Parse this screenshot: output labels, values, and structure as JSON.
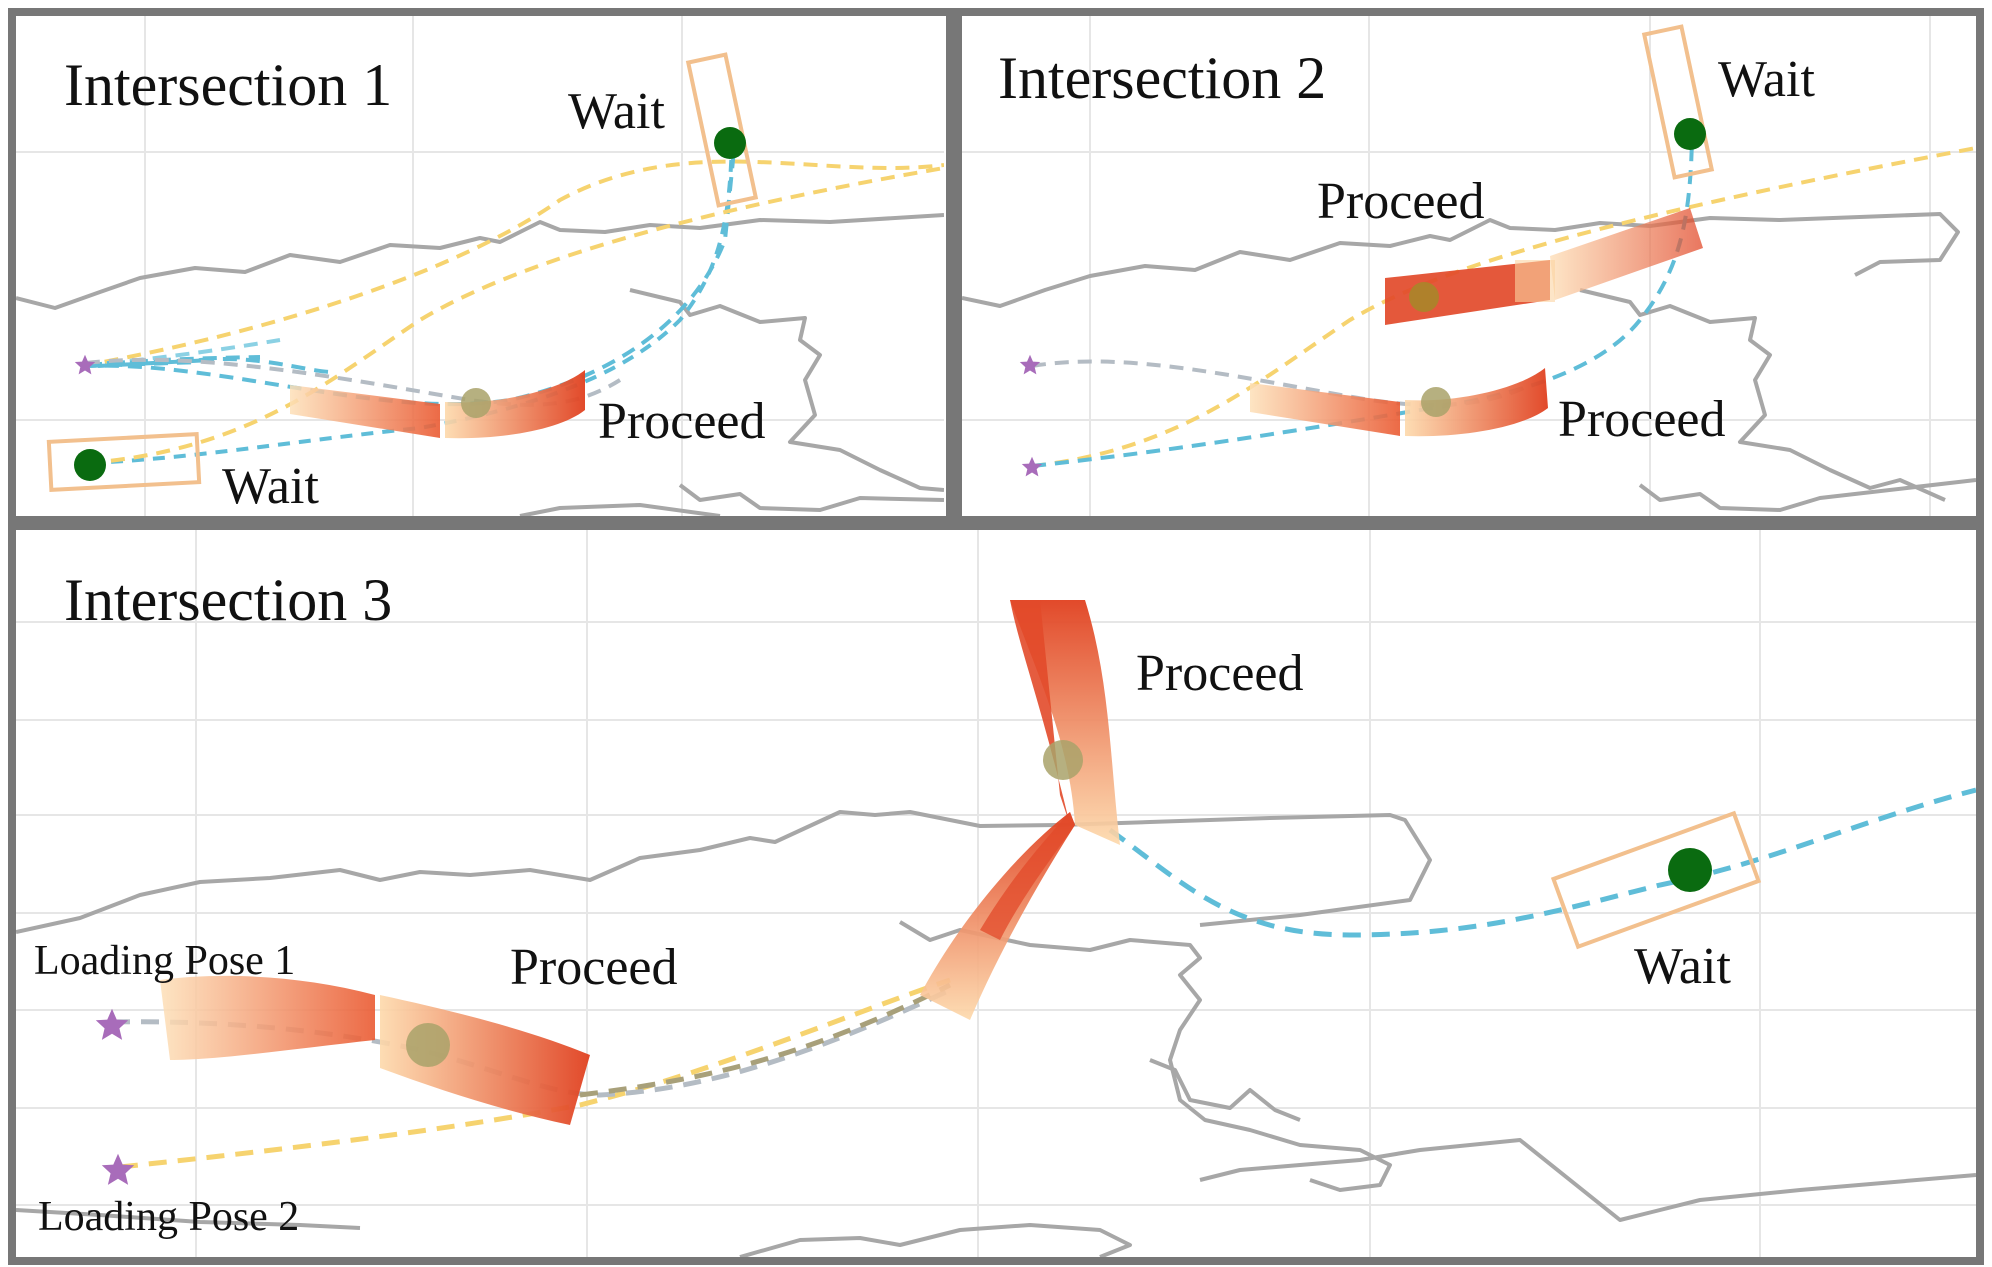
{
  "panels": [
    {
      "title": "Intersection 1",
      "labels": [
        "Wait",
        "Proceed",
        "Wait"
      ]
    },
    {
      "title": "Intersection 2",
      "labels": [
        "Wait",
        "Proceed",
        "Proceed"
      ]
    },
    {
      "title": "Intersection 3",
      "labels": [
        "Proceed",
        "Proceed",
        "Wait"
      ],
      "pose_labels": [
        "Loading Pose 1",
        "Loading Pose 2"
      ]
    }
  ],
  "colors": {
    "frame": "#777777",
    "grid": "#e6e6e6",
    "obstacle": "#a7a7a7",
    "path_blue": "#5fbdd8",
    "path_yellow": "#f6d36f",
    "path_gray": "#b4bcc4",
    "wait_box": "#f2c08e",
    "wait_robot": "#0a6b10",
    "start_star": "#a86cba",
    "proceed_dark": "#e24a2a",
    "proceed_light": "#fbd3a2"
  },
  "icons": {
    "waiting_robot": "filled-circle",
    "start_pose": "star"
  }
}
